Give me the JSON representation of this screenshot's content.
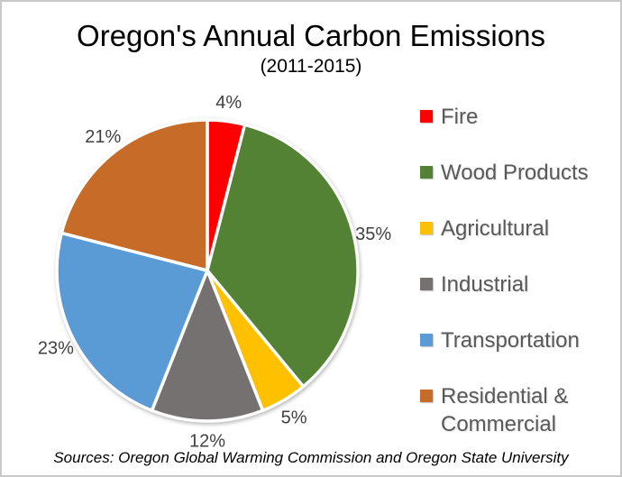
{
  "chart_data": {
    "type": "pie",
    "title": "Oregon's Annual Carbon Emissions",
    "subtitle": "(2011-2015)",
    "slices": [
      {
        "label": "Fire",
        "value": 4,
        "percent_label": "4%",
        "color": "#FF0000"
      },
      {
        "label": "Wood Products",
        "value": 35,
        "percent_label": "35%",
        "color": "#548235"
      },
      {
        "label": "Agricultural",
        "value": 5,
        "percent_label": "5%",
        "color": "#FFC000"
      },
      {
        "label": "Industrial",
        "value": 12,
        "percent_label": "12%",
        "color": "#767171"
      },
      {
        "label": "Transportation",
        "value": 23,
        "percent_label": "23%",
        "color": "#5B9BD5"
      },
      {
        "label": "Residential & Commercial",
        "value": 21,
        "percent_label": "21%",
        "color": "#C76B28"
      }
    ],
    "start_angle_deg": 0,
    "direction": "clockwise",
    "data_labels": "percent_outside",
    "label_color": "#404040",
    "legend_position": "right",
    "legend_text_color": "#595959",
    "source_note": "Sources: Oregon Global Warming Commission and Oregon State University"
  }
}
